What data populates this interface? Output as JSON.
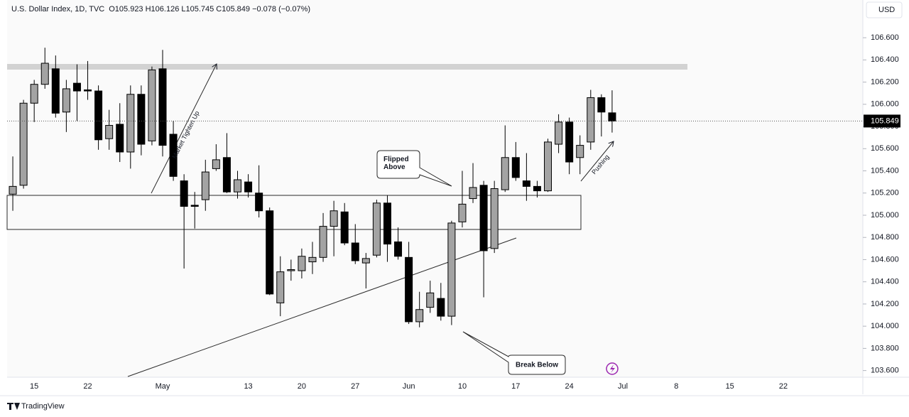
{
  "chart_data": {
    "type": "candlestick",
    "title": "U.S. Dollar Index, 1D, TVC",
    "ohlc_label": "O105.923 H106.126 L105.745 C105.849 −0.078 (−0.07%)",
    "currency": "USD",
    "brand": "TradingView",
    "categories": [
      null,
      null,
      "15",
      null,
      null,
      null,
      null,
      "22",
      null,
      null,
      null,
      null,
      null,
      null,
      "May",
      null,
      null,
      null,
      null,
      null,
      null,
      null,
      "13",
      null,
      null,
      null,
      null,
      "20",
      null,
      null,
      null,
      null,
      "27",
      null,
      null,
      null,
      null,
      "Jun",
      null,
      null,
      null,
      null,
      "10",
      null,
      null,
      null,
      null,
      "17",
      null,
      null,
      null,
      null,
      "24",
      null,
      null,
      null,
      null,
      "Jul",
      null,
      null,
      null,
      null,
      "8",
      null,
      null,
      null,
      null,
      "15",
      null,
      null,
      null,
      null,
      "22",
      null,
      null,
      null,
      null,
      null,
      null
    ],
    "open": [
      105.19,
      105.27,
      106.01,
      106.18,
      106.32,
      105.93,
      106.19,
      106.13,
      106.12,
      105.69,
      105.82,
      105.57,
      106.09,
      105.67,
      106.32,
      105.73,
      105.31,
      105.09,
      105.14,
      105.42,
      105.52,
      105.21,
      105.3,
      105.2,
      105.04,
      104.21,
      104.5,
      104.5,
      104.58,
      104.62,
      104.9,
      105.03,
      104.75,
      104.57,
      104.64,
      105.11,
      104.76,
      104.62,
      104.04,
      104.17,
      104.25,
      104.09,
      104.94,
      105.15,
      105.27,
      104.7,
      105.23,
      105.52,
      105.31,
      105.26,
      105.22,
      105.64,
      105.84,
      105.52,
      105.66,
      106.06,
      105.923,
      null,
      null,
      null,
      null,
      null,
      null,
      null,
      null,
      null,
      null,
      null,
      null,
      null,
      null,
      null,
      null,
      null,
      null,
      null,
      null,
      null,
      null
    ],
    "high": [
      105.53,
      106.04,
      106.22,
      106.51,
      106.44,
      106.22,
      106.36,
      106.39,
      106.17,
      105.95,
      106.01,
      106.17,
      106.17,
      106.34,
      106.49,
      105.85,
      105.37,
      105.21,
      105.5,
      105.64,
      105.74,
      105.4,
      105.37,
      105.45,
      105.07,
      104.63,
      104.6,
      104.7,
      104.76,
      105.02,
      105.13,
      105.11,
      104.92,
      104.66,
      105.14,
      105.18,
      104.89,
      104.76,
      104.31,
      104.41,
      104.39,
      104.95,
      105.4,
      105.47,
      105.31,
      105.31,
      105.81,
      105.66,
      105.56,
      105.31,
      105.69,
      105.91,
      105.88,
      105.72,
      106.13,
      106.09,
      106.126,
      null,
      null,
      null,
      null,
      null,
      null,
      null,
      null,
      null,
      null,
      null,
      null,
      null,
      null,
      null,
      null,
      null,
      null,
      null,
      null,
      null,
      null
    ],
    "low": [
      105.04,
      105.24,
      105.84,
      106.14,
      105.88,
      105.75,
      105.85,
      106.04,
      105.59,
      105.59,
      105.48,
      105.42,
      105.54,
      105.63,
      105.53,
      105.31,
      104.52,
      104.88,
      105.04,
      105.4,
      105.2,
      105.15,
      105.16,
      104.98,
      104.28,
      104.09,
      104.41,
      104.43,
      104.47,
      104.58,
      104.63,
      104.73,
      104.56,
      104.34,
      104.62,
      104.58,
      104.6,
      104.02,
      103.99,
      104.12,
      104.05,
      104.01,
      104.89,
      105.11,
      104.26,
      104.66,
      105.21,
      105.31,
      105.13,
      105.16,
      105.21,
      105.56,
      105.37,
      105.37,
      105.59,
      105.71,
      105.745,
      null,
      null,
      null,
      null,
      null,
      null,
      null,
      null,
      null,
      null,
      null,
      null,
      null,
      null,
      null,
      null,
      null,
      null,
      null,
      null,
      null,
      null
    ],
    "close": [
      105.26,
      106.01,
      106.18,
      106.37,
      105.92,
      106.14,
      106.12,
      106.12,
      105.68,
      105.81,
      105.57,
      106.09,
      105.64,
      106.31,
      105.63,
      105.35,
      105.08,
      105.08,
      105.39,
      105.5,
      105.21,
      105.32,
      105.21,
      105.04,
      104.29,
      104.49,
      104.51,
      104.63,
      104.62,
      104.9,
      105.04,
      104.75,
      104.59,
      104.61,
      105.11,
      104.74,
      104.63,
      104.04,
      104.15,
      104.3,
      104.09,
      104.93,
      105.1,
      105.25,
      104.68,
      105.24,
      105.52,
      105.34,
      105.26,
      105.22,
      105.66,
      105.84,
      105.48,
      105.63,
      106.06,
      105.93,
      105.849,
      null,
      null,
      null,
      null,
      null,
      null,
      null,
      null,
      null,
      null,
      null,
      null,
      null,
      null,
      null,
      null,
      null,
      null,
      null,
      null,
      null,
      null
    ],
    "up_color": "#a3a3a3",
    "down_color": "#000000",
    "last_price": 105.849,
    "ylim": [
      103.54,
      106.94
    ],
    "yticks": [
      {
        "value": 103.6,
        "label": "103.600"
      },
      {
        "value": 103.8,
        "label": "103.800"
      },
      {
        "value": 104.0,
        "label": "104.000"
      },
      {
        "value": 104.2,
        "label": "104.200"
      },
      {
        "value": 104.4,
        "label": "104.400"
      },
      {
        "value": 104.6,
        "label": "104.600"
      },
      {
        "value": 104.8,
        "label": "104.800"
      },
      {
        "value": 105.0,
        "label": "105.000"
      },
      {
        "value": 105.2,
        "label": "105.200"
      },
      {
        "value": 105.4,
        "label": "105.400"
      },
      {
        "value": 105.6,
        "label": "105.600"
      },
      {
        "value": 105.8,
        "label": "105.800"
      },
      {
        "value": 106.0,
        "label": "106.000"
      },
      {
        "value": 106.2,
        "label": "106.200"
      },
      {
        "value": 106.4,
        "label": "106.400"
      },
      {
        "value": 106.6,
        "label": "106.600"
      }
    ],
    "annotations": {
      "tighten": "Market Tighten Up",
      "flipped": "Flipped Above",
      "break": "Break Below",
      "pushing": "Pushing"
    }
  }
}
